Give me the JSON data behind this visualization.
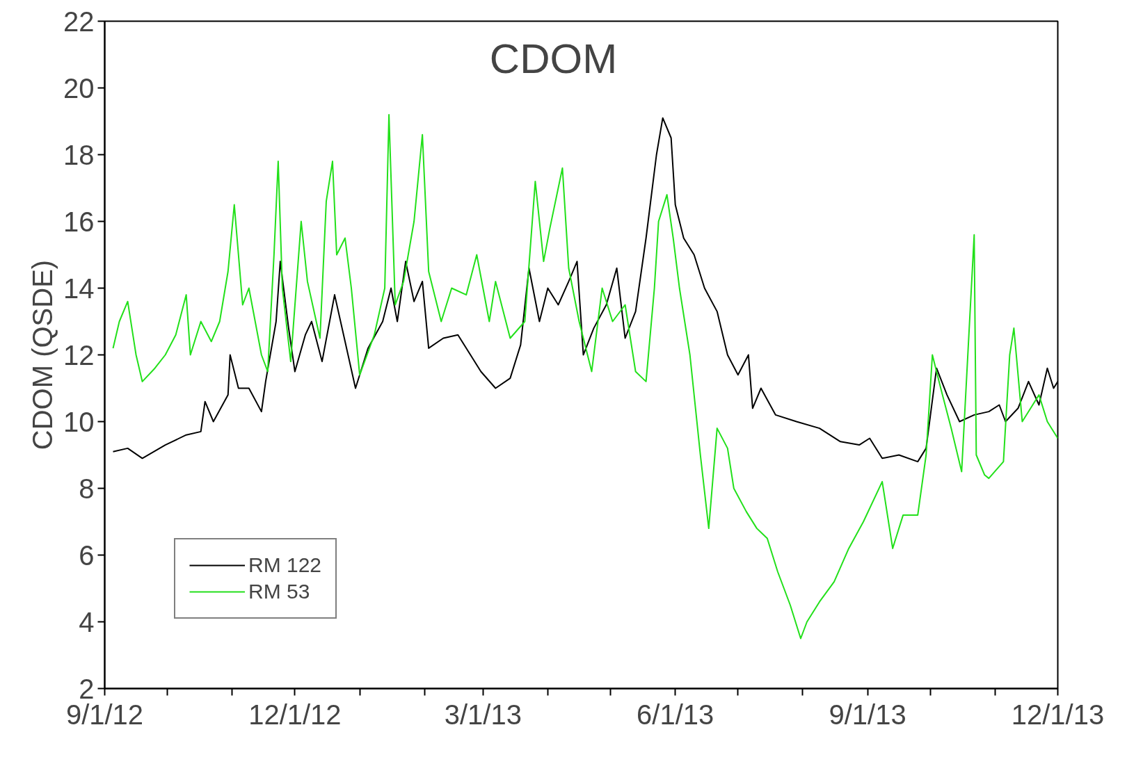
{
  "chart_data": {
    "type": "line",
    "title": "CDOM",
    "ylabel": "CDOM (QSDE)",
    "xlim": [
      "2012-09-01",
      "2013-12-01"
    ],
    "ylim": [
      2,
      22
    ],
    "yticks": [
      2,
      4,
      6,
      8,
      10,
      12,
      14,
      16,
      18,
      20,
      22
    ],
    "xticks": [
      {
        "value": "2012-09-01",
        "label": "9/1/12"
      },
      {
        "value": "2012-10-01",
        "label": null
      },
      {
        "value": "2012-11-01",
        "label": null
      },
      {
        "value": "2012-12-01",
        "label": "12/1/12"
      },
      {
        "value": "2013-01-01",
        "label": null
      },
      {
        "value": "2013-02-01",
        "label": null
      },
      {
        "value": "2013-03-01",
        "label": "3/1/13"
      },
      {
        "value": "2013-04-01",
        "label": null
      },
      {
        "value": "2013-05-01",
        "label": null
      },
      {
        "value": "2013-06-01",
        "label": "6/1/13"
      },
      {
        "value": "2013-07-01",
        "label": null
      },
      {
        "value": "2013-08-01",
        "label": null
      },
      {
        "value": "2013-09-01",
        "label": "9/1/13"
      },
      {
        "value": "2013-10-01",
        "label": null
      },
      {
        "value": "2013-11-01",
        "label": null
      },
      {
        "value": "2013-12-01",
        "label": "12/1/13"
      }
    ],
    "grid": false,
    "legend": "bottom left",
    "marker": "none",
    "line_style": "solid",
    "series": [
      {
        "name": "RM 122",
        "color": "#000000",
        "x": [
          "2012-09-05",
          "2012-09-12",
          "2012-09-19",
          "2012-09-30",
          "2012-10-10",
          "2012-10-17",
          "2012-10-19",
          "2012-10-23",
          "2012-10-30",
          "2012-10-31",
          "2012-11-04",
          "2012-11-09",
          "2012-11-15",
          "2012-11-17",
          "2012-11-22",
          "2012-11-24",
          "2012-11-28",
          "2012-12-01",
          "2012-12-06",
          "2012-12-09",
          "2012-12-14",
          "2012-12-20",
          "2012-12-25",
          "2012-12-30",
          "2013-01-05",
          "2013-01-12",
          "2013-01-16",
          "2013-01-19",
          "2013-01-23",
          "2013-01-27",
          "2013-01-31",
          "2013-02-03",
          "2013-02-10",
          "2013-02-17",
          "2013-02-23",
          "2013-02-28",
          "2013-03-07",
          "2013-03-14",
          "2013-03-19",
          "2013-03-23",
          "2013-03-28",
          "2013-04-01",
          "2013-04-06",
          "2013-04-11",
          "2013-04-15",
          "2013-04-18",
          "2013-04-23",
          "2013-04-29",
          "2013-05-04",
          "2013-05-08",
          "2013-05-13",
          "2013-05-18",
          "2013-05-23",
          "2013-05-26",
          "2013-05-30",
          "2013-06-01",
          "2013-06-05",
          "2013-06-10",
          "2013-06-15",
          "2013-06-21",
          "2013-06-26",
          "2013-07-01",
          "2013-07-06",
          "2013-07-08",
          "2013-07-12",
          "2013-07-19",
          "2013-07-29",
          "2013-08-09",
          "2013-08-19",
          "2013-08-28",
          "2013-09-02",
          "2013-09-08",
          "2013-09-16",
          "2013-09-25",
          "2013-09-29",
          "2013-10-04",
          "2013-10-09",
          "2013-10-15",
          "2013-10-22",
          "2013-10-29",
          "2013-11-03",
          "2013-11-06",
          "2013-11-12",
          "2013-11-17",
          "2013-11-22",
          "2013-11-26",
          "2013-11-29",
          "2013-12-01"
        ],
        "values": [
          9.1,
          9.2,
          8.9,
          9.3,
          9.6,
          9.7,
          10.6,
          10.0,
          10.8,
          12.0,
          11.0,
          11.0,
          10.3,
          11.2,
          13.0,
          14.8,
          12.8,
          11.5,
          12.6,
          13.0,
          11.8,
          13.8,
          12.4,
          11.0,
          12.2,
          13.0,
          14.0,
          13.0,
          14.8,
          13.6,
          14.2,
          12.2,
          12.5,
          12.6,
          12.0,
          11.5,
          11.0,
          11.3,
          12.3,
          14.6,
          13.0,
          14.0,
          13.5,
          14.2,
          14.8,
          12.0,
          12.8,
          13.5,
          14.6,
          12.5,
          13.3,
          15.5,
          18.0,
          19.1,
          18.5,
          16.5,
          15.5,
          15.0,
          14.0,
          13.3,
          12.0,
          11.4,
          12.0,
          10.4,
          11.0,
          10.2,
          10.0,
          9.8,
          9.4,
          9.3,
          9.5,
          8.9,
          9.0,
          8.8,
          9.2,
          11.6,
          10.8,
          10.0,
          10.2,
          10.3,
          10.5,
          10.0,
          10.4,
          11.2,
          10.5,
          11.6,
          11.0,
          11.2
        ]
      },
      {
        "name": "RM 53",
        "color": "#22e01a",
        "x": [
          "2012-09-05",
          "2012-09-08",
          "2012-09-12",
          "2012-09-16",
          "2012-09-19",
          "2012-09-25",
          "2012-09-30",
          "2012-10-05",
          "2012-10-10",
          "2012-10-12",
          "2012-10-17",
          "2012-10-22",
          "2012-10-26",
          "2012-10-30",
          "2012-11-02",
          "2012-11-06",
          "2012-11-09",
          "2012-11-15",
          "2012-11-18",
          "2012-11-21",
          "2012-11-23",
          "2012-11-25",
          "2012-11-29",
          "2012-12-04",
          "2012-12-07",
          "2012-12-13",
          "2012-12-16",
          "2012-12-19",
          "2012-12-21",
          "2012-12-25",
          "2012-12-28",
          "2013-01-01",
          "2013-01-08",
          "2013-01-13",
          "2013-01-15",
          "2013-01-18",
          "2013-01-22",
          "2013-01-27",
          "2013-01-31",
          "2013-02-03",
          "2013-02-09",
          "2013-02-14",
          "2013-02-21",
          "2013-02-26",
          "2013-03-04",
          "2013-03-07",
          "2013-03-14",
          "2013-03-21",
          "2013-03-26",
          "2013-03-30",
          "2013-04-02",
          "2013-04-08",
          "2013-04-11",
          "2013-04-16",
          "2013-04-22",
          "2013-04-27",
          "2013-05-02",
          "2013-05-08",
          "2013-05-13",
          "2013-05-18",
          "2013-05-22",
          "2013-05-24",
          "2013-05-28",
          "2013-05-31",
          "2013-06-03",
          "2013-06-08",
          "2013-06-13",
          "2013-06-17",
          "2013-06-21",
          "2013-06-26",
          "2013-06-29",
          "2013-07-05",
          "2013-07-10",
          "2013-07-15",
          "2013-07-20",
          "2013-07-26",
          "2013-07-31",
          "2013-08-03",
          "2013-08-09",
          "2013-08-16",
          "2013-08-23",
          "2013-08-30",
          "2013-09-08",
          "2013-09-13",
          "2013-09-18",
          "2013-09-25",
          "2013-09-29",
          "2013-10-02",
          "2013-10-06",
          "2013-10-11",
          "2013-10-16",
          "2013-10-22",
          "2013-10-23",
          "2013-10-27",
          "2013-10-29",
          "2013-11-05",
          "2013-11-08",
          "2013-11-10",
          "2013-11-14",
          "2013-11-19",
          "2013-11-22",
          "2013-11-26",
          "2013-12-01"
        ],
        "values": [
          12.2,
          13.0,
          13.6,
          12.0,
          11.2,
          11.6,
          12.0,
          12.6,
          13.8,
          12.0,
          13.0,
          12.4,
          13.0,
          14.5,
          16.5,
          13.5,
          14.0,
          12.0,
          11.5,
          15.0,
          17.8,
          14.0,
          11.8,
          16.0,
          14.2,
          12.5,
          16.6,
          17.8,
          15.0,
          15.5,
          14.0,
          11.4,
          12.6,
          14.0,
          19.2,
          13.5,
          14.2,
          16.0,
          18.6,
          14.5,
          13.0,
          14.0,
          13.8,
          15.0,
          13.0,
          14.2,
          12.5,
          13.0,
          17.2,
          14.8,
          15.8,
          17.6,
          14.6,
          13.0,
          11.5,
          14.0,
          13.0,
          13.5,
          11.5,
          11.2,
          14.0,
          16.0,
          16.8,
          15.5,
          14.0,
          12.0,
          9.0,
          6.8,
          9.8,
          9.2,
          8.0,
          7.3,
          6.8,
          6.5,
          5.5,
          4.5,
          3.5,
          4.0,
          4.6,
          5.2,
          6.2,
          7.0,
          8.2,
          6.2,
          7.2,
          7.2,
          9.0,
          12.0,
          11.0,
          9.8,
          8.5,
          15.6,
          9.0,
          8.4,
          8.3,
          8.8,
          12.0,
          12.8,
          10.0,
          10.5,
          10.8,
          10.0,
          9.5
        ]
      }
    ]
  }
}
